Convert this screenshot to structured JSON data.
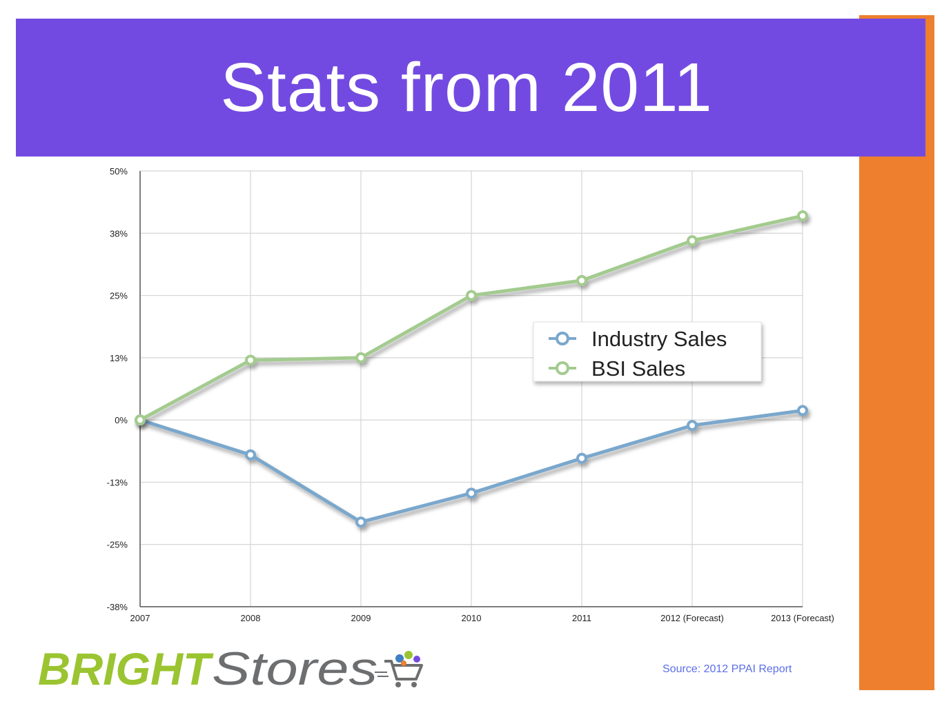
{
  "slide": {
    "title": "Stats from 2011",
    "source": "Source: 2012 PPAI Report",
    "logo_text": "BRIGHTStores",
    "colors": {
      "title_band": "#734ae1",
      "side_bar": "#ed7f2e",
      "source_text": "#5b6ee8",
      "logo_green": "#9bc431",
      "logo_gray": "#6d6e70"
    }
  },
  "chart_data": {
    "type": "line",
    "categories": [
      "2007",
      "2008",
      "2009",
      "2010",
      "2011",
      "2012 (Forecast)",
      "2013 (Forecast)"
    ],
    "y_ticks": [
      "50%",
      "38%",
      "25%",
      "13%",
      "0%",
      "-13%",
      "-25%",
      "-38%"
    ],
    "ylim": [
      -37.5,
      50
    ],
    "grid": true,
    "legend_position": "upper-right",
    "series": [
      {
        "name": "Industry Sales",
        "color": "#7aa7cc",
        "values": [
          0,
          -7,
          -20.5,
          -14.7,
          -7.7,
          -1.1,
          1.9
        ]
      },
      {
        "name": "BSI Sales",
        "color": "#a3cb8f",
        "values": [
          0,
          12,
          12.5,
          25,
          28,
          36,
          41
        ]
      }
    ]
  }
}
